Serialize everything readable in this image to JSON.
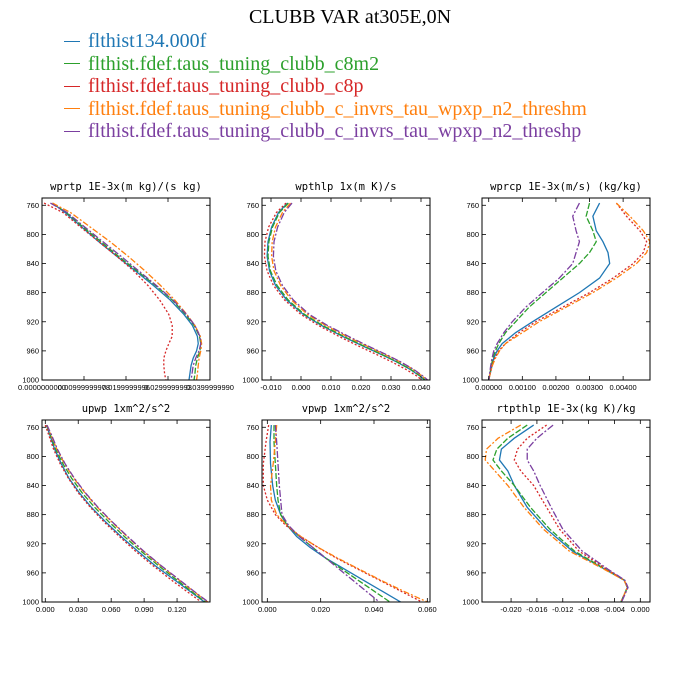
{
  "figure": {
    "title": "CLUBB VAR at305E,0N",
    "legend": [
      {
        "label": "flthist134.000f",
        "color": "#1f77b4"
      },
      {
        "label": "flthist.fdef.taus_tuning_clubb_c8m2",
        "color": "#2ca02c"
      },
      {
        "label": "flthist.fdef.taus_tuning_clubb_c8p",
        "color": "#d62728"
      },
      {
        "label": "flthist.fdef.taus_tuning_clubb_c_invrs_tau_wpxp_n2_threshm",
        "color": "#ff7f0e"
      },
      {
        "label": "flthist.fdef.taus_tuning_clubb_c_invrs_tau_wpxp_n2_threshp",
        "color": "#7b3fa0"
      }
    ]
  },
  "chart_data": [
    {
      "type": "line",
      "title": "wprtp  1E-3x(m kg)/(s kg)",
      "xlim": [
        0.0,
        0.04
      ],
      "xticks": [
        0.0,
        0.01,
        0.02,
        0.03,
        0.04
      ],
      "xticklabels": [
        "0.0000000000",
        "0.00999999978",
        "0.0199999996",
        "0.0299999993",
        "0.0399999990"
      ],
      "ylim": [
        1000,
        750
      ],
      "yticks": [
        760,
        800,
        840,
        880,
        920,
        960,
        1000
      ],
      "y": [
        757,
        770,
        790,
        810,
        830,
        850,
        870,
        890,
        910,
        925,
        940,
        950,
        960,
        970,
        980,
        992,
        1000
      ],
      "series": [
        {
          "values": [
            0.0025,
            0.0055,
            0.0095,
            0.0135,
            0.0178,
            0.0222,
            0.0265,
            0.0305,
            0.0338,
            0.0358,
            0.037,
            0.0372,
            0.0368,
            0.036,
            0.0355,
            0.0352,
            0.035
          ]
        },
        {
          "values": [
            0.0025,
            0.0058,
            0.0098,
            0.014,
            0.0182,
            0.0226,
            0.027,
            0.031,
            0.0342,
            0.0362,
            0.0375,
            0.0378,
            0.0376,
            0.037,
            0.0366,
            0.0364,
            0.0362
          ]
        },
        {
          "values": [
            0.0005,
            0.005,
            0.0092,
            0.0135,
            0.0178,
            0.0218,
            0.0252,
            0.028,
            0.0302,
            0.031,
            0.031,
            0.0302,
            0.0295,
            0.029,
            0.029,
            0.0292,
            0.0295
          ]
        },
        {
          "values": [
            0.0025,
            0.0068,
            0.0115,
            0.0162,
            0.0205,
            0.0245,
            0.0282,
            0.0316,
            0.0345,
            0.0364,
            0.0377,
            0.038,
            0.0378,
            0.0374,
            0.0372,
            0.037,
            0.0368
          ]
        },
        {
          "values": [
            0.002,
            0.006,
            0.0102,
            0.0145,
            0.0188,
            0.023,
            0.0272,
            0.0312,
            0.0344,
            0.0364,
            0.0376,
            0.0378,
            0.0374,
            0.0366,
            0.036,
            0.0357,
            0.0355
          ]
        }
      ]
    },
    {
      "type": "line",
      "title": "wpthlp  1x(m K)/s",
      "xlim": [
        -0.013,
        0.043
      ],
      "xticks": [
        -0.01,
        0.0,
        0.01,
        0.02,
        0.03,
        0.04
      ],
      "xticklabels": [
        "-0.010",
        "0.000",
        "0.010",
        "0.020",
        "0.030",
        "0.040"
      ],
      "ylim": [
        1000,
        750
      ],
      "yticks": [
        760,
        800,
        840,
        880,
        920,
        960,
        1000
      ],
      "y": [
        757,
        770,
        790,
        810,
        830,
        850,
        870,
        890,
        910,
        925,
        940,
        955,
        965,
        975,
        985,
        995,
        1000
      ],
      "series": [
        {
          "values": [
            -0.0045,
            -0.0075,
            -0.0098,
            -0.011,
            -0.0113,
            -0.0105,
            -0.0085,
            -0.0048,
            0.0008,
            0.0068,
            0.0138,
            0.0215,
            0.0268,
            0.0318,
            0.0362,
            0.0398,
            0.0412
          ]
        },
        {
          "values": [
            -0.0042,
            -0.0072,
            -0.0095,
            -0.0107,
            -0.011,
            -0.0102,
            -0.008,
            -0.0043,
            0.0012,
            0.0072,
            0.0142,
            0.0218,
            0.027,
            0.032,
            0.0364,
            0.04,
            0.0414
          ]
        },
        {
          "values": [
            -0.005,
            -0.0082,
            -0.0108,
            -0.012,
            -0.0122,
            -0.0113,
            -0.0092,
            -0.0055,
            0.0,
            0.0058,
            0.0126,
            0.02,
            0.0252,
            0.0302,
            0.0348,
            0.0388,
            0.0402
          ]
        },
        {
          "values": [
            -0.0035,
            -0.0062,
            -0.0085,
            -0.0096,
            -0.0098,
            -0.009,
            -0.0068,
            -0.0032,
            0.0022,
            0.0082,
            0.0152,
            0.0228,
            0.028,
            0.033,
            0.0372,
            0.0405,
            0.042
          ]
        },
        {
          "values": [
            -0.003,
            -0.0056,
            -0.0078,
            -0.009,
            -0.0092,
            -0.0084,
            -0.0062,
            -0.0026,
            0.0028,
            0.0088,
            0.0158,
            0.0232,
            0.0284,
            0.0332,
            0.0374,
            0.0408,
            0.0422
          ]
        }
      ]
    },
    {
      "type": "line",
      "title": "wprcp  1E-3x(m/s) (kg/kg)",
      "xlim": [
        -0.0002,
        0.0048
      ],
      "xticks": [
        0.0,
        0.001,
        0.002,
        0.003,
        0.004
      ],
      "xticklabels": [
        "0.00000",
        "0.00100",
        "0.00200",
        "0.00300",
        "0.00400"
      ],
      "ylim": [
        1000,
        750
      ],
      "yticks": [
        760,
        800,
        840,
        880,
        920,
        960,
        1000
      ],
      "y": [
        757,
        775,
        795,
        810,
        825,
        840,
        860,
        880,
        900,
        920,
        935,
        950,
        960,
        970,
        980,
        990,
        1000
      ],
      "series": [
        {
          "values": [
            0.0033,
            0.0031,
            0.0032,
            0.0034,
            0.00355,
            0.0036,
            0.0033,
            0.0027,
            0.002,
            0.0013,
            0.0008,
            0.0004,
            0.00025,
            0.00015,
            0.0001,
            5e-05,
            0.0
          ]
        },
        {
          "values": [
            0.003,
            0.0029,
            0.0031,
            0.0032,
            0.003,
            0.0027,
            0.0022,
            0.0017,
            0.0012,
            0.0008,
            0.0005,
            0.0003,
            0.0002,
            0.00012,
            8e-05,
            4e-05,
            0.0
          ]
        },
        {
          "values": [
            0.0038,
            0.0041,
            0.0045,
            0.0047,
            0.0046,
            0.0043,
            0.0037,
            0.003,
            0.0022,
            0.0014,
            0.0009,
            0.0005,
            0.0003,
            0.00018,
            0.0001,
            5e-05,
            0.0
          ]
        },
        {
          "values": [
            0.0038,
            0.0042,
            0.0046,
            0.0048,
            0.0047,
            0.0044,
            0.0038,
            0.0031,
            0.0023,
            0.0015,
            0.001,
            0.0005,
            0.00032,
            0.0002,
            0.00011,
            5e-05,
            0.0
          ]
        },
        {
          "values": [
            0.0027,
            0.0025,
            0.0026,
            0.0027,
            0.0026,
            0.0025,
            0.0021,
            0.0016,
            0.0011,
            0.0007,
            0.00045,
            0.00025,
            0.00015,
            0.0001,
            6e-05,
            3e-05,
            0.0
          ]
        }
      ]
    },
    {
      "type": "line",
      "title": "upwp  1xm^2/s^2",
      "xlim": [
        -0.003,
        0.15
      ],
      "xticks": [
        0.0,
        0.03,
        0.06,
        0.09,
        0.12
      ],
      "xticklabels": [
        "0.000",
        "0.030",
        "0.060",
        "0.090",
        "0.120"
      ],
      "ylim": [
        1000,
        750
      ],
      "yticks": [
        760,
        800,
        840,
        880,
        920,
        960,
        1000
      ],
      "y": [
        757,
        770,
        790,
        810,
        830,
        850,
        870,
        890,
        910,
        930,
        950,
        970,
        990,
        1000
      ],
      "series": [
        {
          "values": [
            0.001,
            0.004,
            0.0085,
            0.0145,
            0.0215,
            0.031,
            0.042,
            0.055,
            0.069,
            0.084,
            0.1,
            0.118,
            0.136,
            0.145
          ]
        },
        {
          "values": [
            0.001,
            0.0045,
            0.0095,
            0.016,
            0.024,
            0.0335,
            0.045,
            0.058,
            0.072,
            0.087,
            0.103,
            0.12,
            0.137,
            0.146
          ]
        },
        {
          "values": [
            0.0,
            0.003,
            0.0075,
            0.0135,
            0.021,
            0.03,
            0.041,
            0.0535,
            0.0675,
            0.082,
            0.098,
            0.115,
            0.133,
            0.142
          ]
        },
        {
          "values": [
            0.0015,
            0.005,
            0.0105,
            0.0175,
            0.026,
            0.036,
            0.0475,
            0.0605,
            0.0745,
            0.089,
            0.105,
            0.122,
            0.139,
            0.148
          ]
        },
        {
          "values": [
            0.0015,
            0.0055,
            0.011,
            0.018,
            0.0265,
            0.0365,
            0.048,
            0.061,
            0.075,
            0.0895,
            0.1055,
            0.1225,
            0.1395,
            0.1485
          ]
        }
      ]
    },
    {
      "type": "line",
      "title": "vpwp  1xm^2/s^2",
      "xlim": [
        -0.002,
        0.061
      ],
      "xticks": [
        0.0,
        0.02,
        0.04,
        0.06
      ],
      "xticklabels": [
        "0.000",
        "0.020",
        "0.040",
        "0.060"
      ],
      "ylim": [
        1000,
        750
      ],
      "yticks": [
        760,
        800,
        840,
        880,
        920,
        960,
        1000
      ],
      "y": [
        757,
        780,
        810,
        840,
        860,
        880,
        895,
        910,
        925,
        940,
        955,
        970,
        985,
        1000
      ],
      "series": [
        {
          "values": [
            0.0015,
            0.001,
            0.0012,
            0.002,
            0.003,
            0.005,
            0.0075,
            0.011,
            0.016,
            0.022,
            0.029,
            0.036,
            0.043,
            0.05
          ]
        },
        {
          "values": [
            0.0025,
            0.0025,
            0.003,
            0.0035,
            0.004,
            0.005,
            0.0075,
            0.012,
            0.017,
            0.022,
            0.028,
            0.034,
            0.04,
            0.046
          ]
        },
        {
          "values": [
            0.0005,
            -0.0005,
            -0.0015,
            -0.0015,
            0.0,
            0.003,
            0.007,
            0.0125,
            0.019,
            0.026,
            0.034,
            0.042,
            0.05,
            0.058
          ]
        },
        {
          "values": [
            0.0035,
            0.003,
            0.0022,
            0.0012,
            0.0015,
            0.0035,
            0.0075,
            0.0125,
            0.019,
            0.0265,
            0.0345,
            0.0425,
            0.051,
            0.06
          ]
        },
        {
          "values": [
            0.003,
            0.0035,
            0.004,
            0.0045,
            0.005,
            0.0055,
            0.008,
            0.012,
            0.017,
            0.022,
            0.027,
            0.032,
            0.037,
            0.042
          ]
        }
      ]
    },
    {
      "type": "line",
      "title": "rtpthlp  1E-3x(kg K)/kg",
      "xlim": [
        -0.0245,
        0.0015
      ],
      "xticks": [
        -0.02,
        -0.016,
        -0.012,
        -0.008,
        -0.004,
        0.0
      ],
      "xticklabels": [
        "-0.020",
        "-0.016",
        "-0.012",
        "-0.008",
        "-0.004",
        "0.000"
      ],
      "ylim": [
        1000,
        750
      ],
      "yticks": [
        760,
        800,
        840,
        880,
        920,
        960,
        1000
      ],
      "y": [
        757,
        775,
        790,
        805,
        820,
        840,
        870,
        900,
        930,
        955,
        970,
        980,
        990,
        1000
      ],
      "series": [
        {
          "values": [
            -0.0165,
            -0.0195,
            -0.0215,
            -0.0218,
            -0.0205,
            -0.0195,
            -0.0175,
            -0.0145,
            -0.0105,
            -0.0055,
            -0.0025,
            -0.002,
            -0.0025,
            -0.003
          ]
        },
        {
          "values": [
            -0.0175,
            -0.0205,
            -0.0222,
            -0.0228,
            -0.0215,
            -0.0195,
            -0.017,
            -0.014,
            -0.0102,
            -0.0054,
            -0.0025,
            -0.002,
            -0.0025,
            -0.003
          ]
        },
        {
          "values": [
            -0.0145,
            -0.0175,
            -0.019,
            -0.0195,
            -0.0185,
            -0.0165,
            -0.0145,
            -0.0125,
            -0.0095,
            -0.0052,
            -0.0025,
            -0.002,
            -0.0025,
            -0.003
          ]
        },
        {
          "values": [
            -0.0185,
            -0.022,
            -0.0238,
            -0.024,
            -0.0225,
            -0.0205,
            -0.018,
            -0.015,
            -0.011,
            -0.0056,
            -0.0025,
            -0.002,
            -0.0025,
            -0.003
          ]
        },
        {
          "values": [
            -0.0135,
            -0.016,
            -0.0175,
            -0.0175,
            -0.0165,
            -0.0155,
            -0.0138,
            -0.012,
            -0.009,
            -0.005,
            -0.0024,
            -0.0019,
            -0.0024,
            -0.0029
          ]
        }
      ]
    }
  ]
}
